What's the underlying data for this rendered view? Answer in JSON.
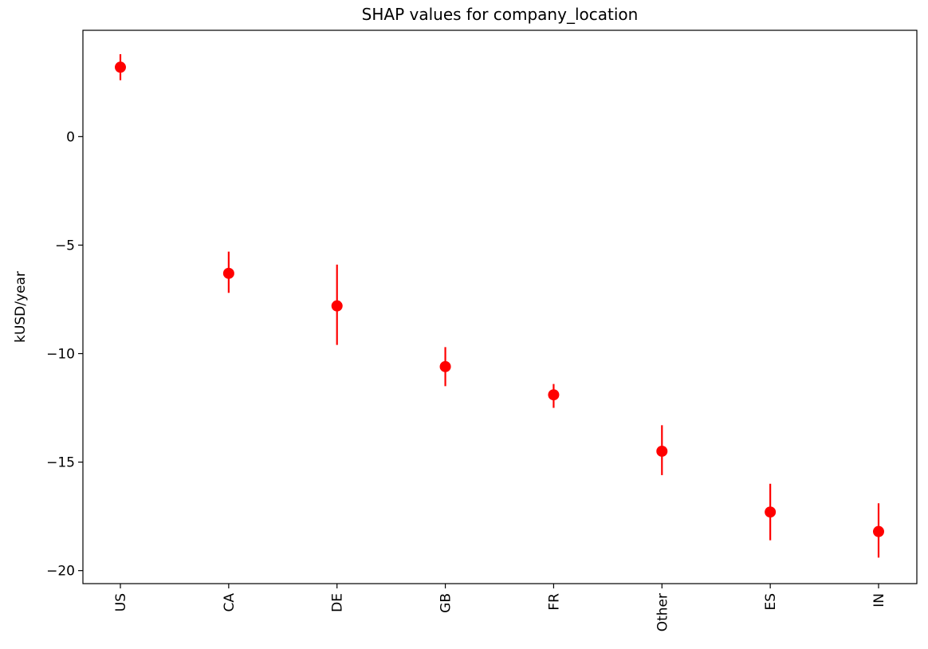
{
  "chart_data": {
    "type": "scatter",
    "title": "SHAP values for company_location",
    "xlabel": "",
    "ylabel": "kUSD/year",
    "categories": [
      "US",
      "CA",
      "DE",
      "GB",
      "FR",
      "Other",
      "ES",
      "IN"
    ],
    "values": [
      3.2,
      -6.3,
      -7.8,
      -10.6,
      -11.9,
      -14.5,
      -17.3,
      -18.2
    ],
    "error_low": [
      2.6,
      -7.2,
      -9.6,
      -11.5,
      -12.5,
      -15.6,
      -18.6,
      -19.4
    ],
    "error_high": [
      3.8,
      -5.3,
      -5.9,
      -9.7,
      -11.4,
      -13.3,
      -16.0,
      -16.9
    ],
    "yticks": [
      0,
      -5,
      -10,
      -15,
      -20
    ],
    "ytick_labels": [
      "0",
      "−5",
      "−10",
      "−15",
      "−20"
    ],
    "ylim": [
      -20.6,
      4.9
    ],
    "grid": false,
    "color": "#ff0000"
  }
}
